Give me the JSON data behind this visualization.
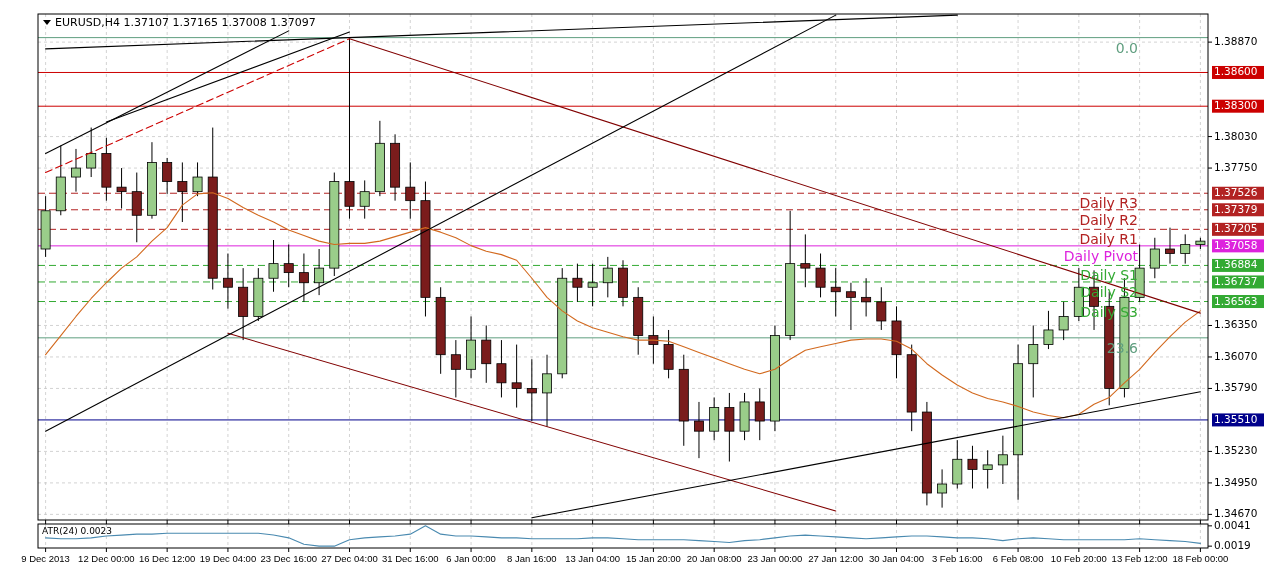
{
  "chart_data": [
    {
      "type": "candlestick",
      "title": "EURUSD,H4  1.37107 1.37165 1.37008 1.37097",
      "grid": true,
      "tick_labels": "y",
      "categories": [
        "9 Dec 2013",
        null,
        null,
        null,
        "12 Dec 00:00",
        null,
        null,
        null,
        "16 Dec 12:00",
        null,
        null,
        null,
        "19 Dec 04:00",
        null,
        null,
        null,
        "23 Dec 16:00",
        null,
        null,
        null,
        "27 Dec 04:00",
        null,
        null,
        null,
        "31 Dec 16:00",
        null,
        null,
        null,
        "6 Jan 00:00",
        null,
        null,
        null,
        "8 Jan 16:00",
        null,
        null,
        null,
        "13 Jan 04:00",
        null,
        null,
        null,
        "15 Jan 20:00",
        null,
        null,
        null,
        "20 Jan 08:00",
        null,
        null,
        null,
        "23 Jan 00:00",
        null,
        null,
        null,
        "27 Jan 12:00",
        null,
        null,
        null,
        "30 Jan 04:00",
        null,
        null,
        null,
        "3 Feb 16:00",
        null,
        null,
        null,
        "6 Feb 08:00",
        null,
        null,
        null,
        "10 Feb 20:00",
        null,
        null,
        null,
        "13 Feb 12:00",
        null,
        null,
        null,
        "18 Feb 00:00"
      ],
      "ylim": [
        1.3462,
        1.3912
      ],
      "yticks": [
        {
          "value": 1.3887,
          "label": "1.38870"
        },
        {
          "value": 1.3803,
          "label": "1.38030"
        },
        {
          "value": 1.3775,
          "label": "1.37750"
        },
        {
          "value": 1.3635,
          "label": "1.36350"
        },
        {
          "value": 1.3607,
          "label": "1.36070"
        },
        {
          "value": 1.3579,
          "label": "1.35790"
        },
        {
          "value": 1.3523,
          "label": "1.35230"
        },
        {
          "value": 1.3495,
          "label": "1.34950"
        },
        {
          "value": 1.3467,
          "label": "1.34670"
        }
      ],
      "ohlc": [
        [
          1.3703,
          1.375,
          1.3696,
          1.3737
        ],
        [
          1.3737,
          1.3795,
          1.3733,
          1.3767
        ],
        [
          1.3767,
          1.3792,
          1.3754,
          1.3775
        ],
        [
          1.3775,
          1.3811,
          1.3767,
          1.3788
        ],
        [
          1.3788,
          1.3802,
          1.3746,
          1.3758
        ],
        [
          1.3758,
          1.3775,
          1.3739,
          1.3754
        ],
        [
          1.3754,
          1.3771,
          1.3709,
          1.3733
        ],
        [
          1.3733,
          1.3798,
          1.373,
          1.378
        ],
        [
          1.378,
          1.3784,
          1.3752,
          1.3763
        ],
        [
          1.3763,
          1.378,
          1.3727,
          1.3754
        ],
        [
          1.3754,
          1.378,
          1.375,
          1.3767
        ],
        [
          1.3767,
          1.3811,
          1.3667,
          1.3677
        ],
        [
          1.3677,
          1.3699,
          1.365,
          1.3669
        ],
        [
          1.3669,
          1.3686,
          1.3622,
          1.3643
        ],
        [
          1.3643,
          1.3686,
          1.3639,
          1.3677
        ],
        [
          1.3677,
          1.3711,
          1.3665,
          1.369
        ],
        [
          1.369,
          1.3707,
          1.3669,
          1.3682
        ],
        [
          1.3682,
          1.3699,
          1.3656,
          1.3673
        ],
        [
          1.3673,
          1.3703,
          1.3662,
          1.3686
        ],
        [
          1.3686,
          1.3771,
          1.3679,
          1.3763
        ],
        [
          1.3763,
          1.389,
          1.373,
          1.3741
        ],
        [
          1.3741,
          1.3764,
          1.373,
          1.3754
        ],
        [
          1.3754,
          1.3817,
          1.375,
          1.3797
        ],
        [
          1.3797,
          1.3805,
          1.3746,
          1.3758
        ],
        [
          1.3758,
          1.378,
          1.373,
          1.3746
        ],
        [
          1.3746,
          1.3763,
          1.3643,
          1.366
        ],
        [
          1.366,
          1.3669,
          1.3592,
          1.3609
        ],
        [
          1.3609,
          1.3622,
          1.3571,
          1.3596
        ],
        [
          1.3596,
          1.3643,
          1.3588,
          1.3622
        ],
        [
          1.3622,
          1.3635,
          1.3584,
          1.3601
        ],
        [
          1.3601,
          1.3622,
          1.3571,
          1.3584
        ],
        [
          1.3584,
          1.3618,
          1.3562,
          1.3579
        ],
        [
          1.3579,
          1.3605,
          1.355,
          1.3575
        ],
        [
          1.3575,
          1.3609,
          1.3545,
          1.3592
        ],
        [
          1.3592,
          1.3686,
          1.3588,
          1.3677
        ],
        [
          1.3677,
          1.369,
          1.3656,
          1.3669
        ],
        [
          1.3669,
          1.369,
          1.3652,
          1.3673
        ],
        [
          1.3673,
          1.3696,
          1.366,
          1.3686
        ],
        [
          1.3686,
          1.3693,
          1.3652,
          1.366
        ],
        [
          1.366,
          1.3669,
          1.3609,
          1.3626
        ],
        [
          1.3626,
          1.3643,
          1.3601,
          1.3618
        ],
        [
          1.3618,
          1.3631,
          1.3588,
          1.3596
        ],
        [
          1.3596,
          1.3609,
          1.3528,
          1.355
        ],
        [
          1.355,
          1.3567,
          1.3517,
          1.3541
        ],
        [
          1.3541,
          1.3571,
          1.3533,
          1.3562
        ],
        [
          1.3562,
          1.3575,
          1.3514,
          1.3541
        ],
        [
          1.3541,
          1.3575,
          1.3533,
          1.3567
        ],
        [
          1.3567,
          1.3579,
          1.3533,
          1.355
        ],
        [
          1.355,
          1.3635,
          1.3541,
          1.3626
        ],
        [
          1.3626,
          1.3737,
          1.3622,
          1.369
        ],
        [
          1.369,
          1.3716,
          1.3669,
          1.3686
        ],
        [
          1.3686,
          1.3699,
          1.366,
          1.3669
        ],
        [
          1.3669,
          1.3686,
          1.3643,
          1.3665
        ],
        [
          1.3665,
          1.3673,
          1.3631,
          1.366
        ],
        [
          1.366,
          1.3677,
          1.3643,
          1.3656
        ],
        [
          1.3656,
          1.3669,
          1.3631,
          1.3639
        ],
        [
          1.3639,
          1.3652,
          1.3588,
          1.3609
        ],
        [
          1.3609,
          1.3618,
          1.3541,
          1.3558
        ],
        [
          1.3558,
          1.3567,
          1.3475,
          1.3486
        ],
        [
          1.3486,
          1.3507,
          1.3473,
          1.3494
        ],
        [
          1.3494,
          1.3533,
          1.349,
          1.3516
        ],
        [
          1.3516,
          1.3528,
          1.349,
          1.3507
        ],
        [
          1.3507,
          1.3524,
          1.349,
          1.3511
        ],
        [
          1.3511,
          1.3537,
          1.3494,
          1.352
        ],
        [
          1.352,
          1.3618,
          1.348,
          1.3601
        ],
        [
          1.3601,
          1.3635,
          1.3571,
          1.3618
        ],
        [
          1.3618,
          1.3648,
          1.3614,
          1.3631
        ],
        [
          1.3631,
          1.3656,
          1.3622,
          1.3643
        ],
        [
          1.3643,
          1.3686,
          1.3639,
          1.3669
        ],
        [
          1.3669,
          1.3684,
          1.3631,
          1.3652
        ],
        [
          1.3652,
          1.3665,
          1.3564,
          1.3579
        ],
        [
          1.3579,
          1.3677,
          1.3571,
          1.366
        ],
        [
          1.366,
          1.3707,
          1.3656,
          1.3686
        ],
        [
          1.3686,
          1.3713,
          1.3677,
          1.3703
        ],
        [
          1.3703,
          1.3722,
          1.369,
          1.3699
        ],
        [
          1.3699,
          1.3716,
          1.369,
          1.3707
        ],
        [
          1.3707,
          1.3713,
          1.3703,
          1.371
        ]
      ],
      "colors": [
        "#9acd8a",
        "#9acd8a",
        "#9acd8a",
        "#9acd8a",
        "#7a1c1c",
        "#7a1c1c",
        "#7a1c1c",
        "#9acd8a",
        "#7a1c1c",
        "#7a1c1c",
        "#9acd8a",
        "#7a1c1c",
        "#7a1c1c",
        "#7a1c1c",
        "#9acd8a",
        "#9acd8a",
        "#7a1c1c",
        "#7a1c1c",
        "#9acd8a",
        "#9acd8a",
        "#7a1c1c",
        "#9acd8a",
        "#9acd8a",
        "#7a1c1c",
        "#7a1c1c",
        "#7a1c1c",
        "#7a1c1c",
        "#7a1c1c",
        "#9acd8a",
        "#7a1c1c",
        "#7a1c1c",
        "#7a1c1c",
        "#7a1c1c",
        "#9acd8a",
        "#9acd8a",
        "#7a1c1c",
        "#9acd8a",
        "#9acd8a",
        "#7a1c1c",
        "#7a1c1c",
        "#7a1c1c",
        "#7a1c1c",
        "#7a1c1c",
        "#7a1c1c",
        "#9acd8a",
        "#7a1c1c",
        "#9acd8a",
        "#7a1c1c",
        "#9acd8a",
        "#9acd8a",
        "#7a1c1c",
        "#7a1c1c",
        "#7a1c1c",
        "#7a1c1c",
        "#7a1c1c",
        "#7a1c1c",
        "#7a1c1c",
        "#7a1c1c",
        "#7a1c1c",
        "#9acd8a",
        "#9acd8a",
        "#7a1c1c",
        "#9acd8a",
        "#9acd8a",
        "#9acd8a",
        "#9acd8a",
        "#9acd8a",
        "#9acd8a",
        "#9acd8a",
        "#7a1c1c",
        "#7a1c1c",
        "#9acd8a",
        "#9acd8a",
        "#9acd8a",
        "#7a1c1c",
        "#9acd8a",
        "#9acd8a"
      ],
      "series": [
        {
          "type": "line",
          "color": "#d2691e",
          "values": [
            1.3609,
            1.3626,
            1.3643,
            1.3659,
            1.3673,
            1.3686,
            1.3696,
            1.371,
            1.3722,
            1.3742,
            1.3752,
            1.3753,
            1.3748,
            1.374,
            1.3733,
            1.3727,
            1.372,
            1.3715,
            1.371,
            1.3707,
            1.3708,
            1.3708,
            1.371,
            1.3714,
            1.3718,
            1.3722,
            1.3718,
            1.3713,
            1.3706,
            1.3701,
            1.3698,
            1.3693,
            1.3677,
            1.366,
            1.3648,
            1.3639,
            1.3633,
            1.3629,
            1.3625,
            1.3622,
            1.3622,
            1.3621,
            1.3616,
            1.3611,
            1.3606,
            1.3601,
            1.3596,
            1.3592,
            1.3596,
            1.3605,
            1.3613,
            1.3616,
            1.3619,
            1.3622,
            1.3623,
            1.3623,
            1.3621,
            1.3614,
            1.3601,
            1.3591,
            1.3582,
            1.3575,
            1.357,
            1.3567,
            1.3563,
            1.3558,
            1.3555,
            1.3553,
            1.3556,
            1.3565,
            1.3571,
            1.3584,
            1.3596,
            1.3611,
            1.3625,
            1.3638,
            1.3648
          ]
        },
        {
          "type": "line",
          "color": "#000000",
          "x": [
            "9 Dec 2013",
            "23 Dec 16:00"
          ],
          "values": [
            1.3788,
            1.3897
          ]
        },
        {
          "type": "line",
          "color": "#000000",
          "x": [
            "12 Dec 00:00",
            "27 Dec 04:00"
          ],
          "values": [
            1.3816,
            1.3896
          ]
        },
        {
          "type": "line",
          "color": "#000000",
          "x": [
            "9 Dec 2013",
            "3 Feb 16:00"
          ],
          "values": [
            1.3881,
            1.3911
          ]
        },
        {
          "type": "line",
          "color": "#cc0000",
          "line_style": "dashed",
          "x": [
            "9 Dec 2013",
            "27 Dec 04:00"
          ],
          "values": [
            1.3771,
            1.389
          ]
        },
        {
          "type": "line",
          "color": "#800000",
          "x": [
            "27 Dec 04:00",
            "18 Feb 00:00"
          ],
          "values": [
            1.389,
            1.3646
          ]
        },
        {
          "type": "line",
          "color": "#800000",
          "x": [
            "19 Dec 04:00",
            "27 Jan 12:00"
          ],
          "values": [
            1.3628,
            1.347
          ]
        },
        {
          "type": "line",
          "color": "#000000",
          "x": [
            "9 Dec 2013",
            "27 Jan 12:00"
          ],
          "values": [
            1.3541,
            1.3911
          ]
        },
        {
          "type": "line",
          "color": "#000000",
          "x": [
            "8 Jan 16:00",
            "18 Feb 00:00"
          ],
          "values": [
            1.3464,
            1.3576
          ]
        }
      ],
      "ref_lines": [
        {
          "axis": "y",
          "value": 1.3891,
          "color": "#5f9e7f"
        },
        {
          "axis": "y",
          "value": 1.386,
          "label": "1.38600",
          "color": "#cc0000"
        },
        {
          "axis": "y",
          "value": 1.383,
          "label": "1.38300",
          "color": "#cc0000"
        },
        {
          "axis": "y",
          "value": 1.37526,
          "label": "1.37526",
          "color": "#b22222",
          "line_style": "dashed"
        },
        {
          "axis": "y",
          "value": 1.37379,
          "label": "1.37379",
          "color": "#b22222",
          "line_style": "dashed"
        },
        {
          "axis": "y",
          "value": 1.37205,
          "label": "1.37205",
          "color": "#b22222",
          "line_style": "dashed"
        },
        {
          "axis": "y",
          "value": 1.37058,
          "label": "1.37058",
          "color": "#dd22dd"
        },
        {
          "axis": "y",
          "value": 1.36884,
          "label": "1.36884",
          "color": "#33aa33",
          "line_style": "dashed"
        },
        {
          "axis": "y",
          "value": 1.36737,
          "label": "1.36737",
          "color": "#33aa33",
          "line_style": "dashed"
        },
        {
          "axis": "y",
          "value": 1.36563,
          "label": "1.36563",
          "color": "#33aa33",
          "line_style": "dashed"
        },
        {
          "axis": "y",
          "value": 1.3624,
          "color": "#5f9e7f"
        },
        {
          "axis": "y",
          "value": 1.3551,
          "label": "1.35510",
          "color": "#00008b"
        }
      ],
      "annotations": [
        {
          "text": "0.0",
          "y": 1.3891
        },
        {
          "text": "Daily R3",
          "y": 1.37526
        },
        {
          "text": "Daily R2",
          "y": 1.37379
        },
        {
          "text": "Daily R1",
          "y": 1.37205
        },
        {
          "text": "Daily Pivot",
          "y": 1.37058
        },
        {
          "text": "Daily S1",
          "y": 1.36884
        },
        {
          "text": "Daily S2",
          "y": 1.36737
        },
        {
          "text": "Daily S3",
          "y": 1.36563
        },
        {
          "text": "23.6",
          "y": 1.3624
        }
      ]
    },
    {
      "type": "line",
      "title": "ATR(24) 0.0023",
      "ylim": [
        0.0017,
        0.0043
      ],
      "grid": "x",
      "categories": [
        "9 Dec 2013",
        null,
        null,
        null,
        "12 Dec 00:00",
        null,
        null,
        null,
        "16 Dec 12:00",
        null,
        null,
        null,
        "19 Dec 04:00",
        null,
        null,
        null,
        "23 Dec 16:00",
        null,
        null,
        null,
        "27 Dec 04:00",
        null,
        null,
        null,
        "31 Dec 16:00",
        null,
        null,
        null,
        "6 Jan 00:00",
        null,
        null,
        null,
        "8 Jan 16:00",
        null,
        null,
        null,
        "13 Jan 04:00",
        null,
        null,
        null,
        "15 Jan 20:00",
        null,
        null,
        null,
        "20 Jan 08:00",
        null,
        null,
        null,
        "23 Jan 00:00",
        null,
        null,
        null,
        "27 Jan 12:00",
        null,
        null,
        null,
        "30 Jan 04:00",
        null,
        null,
        null,
        "3 Feb 16:00",
        null,
        null,
        null,
        "6 Feb 08:00",
        null,
        null,
        null,
        "10 Feb 20:00",
        null,
        null,
        null,
        "13 Feb 12:00",
        null,
        null,
        null,
        "18 Feb 00:00"
      ],
      "yticks": [
        0.0041,
        0.0019
      ],
      "series": [
        {
          "color": "#4a8ab0",
          "values": [
            0.0028,
            0.0027,
            0.0027,
            0.0028,
            0.003,
            0.0031,
            0.0032,
            0.0032,
            0.0033,
            0.0033,
            0.0033,
            0.0033,
            0.0033,
            0.0033,
            0.0033,
            0.0031,
            0.0028,
            0.0021,
            0.0019,
            0.0019,
            0.0026,
            0.0028,
            0.0029,
            0.003,
            0.0032,
            0.0041,
            0.0032,
            0.003,
            0.003,
            0.0029,
            0.0028,
            0.0028,
            0.0027,
            0.0027,
            0.0027,
            0.0027,
            0.0028,
            0.0028,
            0.0027,
            0.0026,
            0.0026,
            0.0026,
            0.0026,
            0.0025,
            0.0024,
            0.0023,
            0.0025,
            0.0026,
            0.0028,
            0.003,
            0.0031,
            0.003,
            0.0029,
            0.0028,
            0.0027,
            0.0028,
            0.0029,
            0.003,
            0.003,
            0.0029,
            0.0028,
            0.0028,
            0.0027,
            0.0025,
            0.0027,
            0.0028,
            0.0027,
            0.0026,
            0.0026,
            0.0026,
            0.0026,
            0.0026,
            0.0027,
            0.0026,
            0.0025,
            0.0024,
            0.0022
          ]
        }
      ]
    }
  ]
}
